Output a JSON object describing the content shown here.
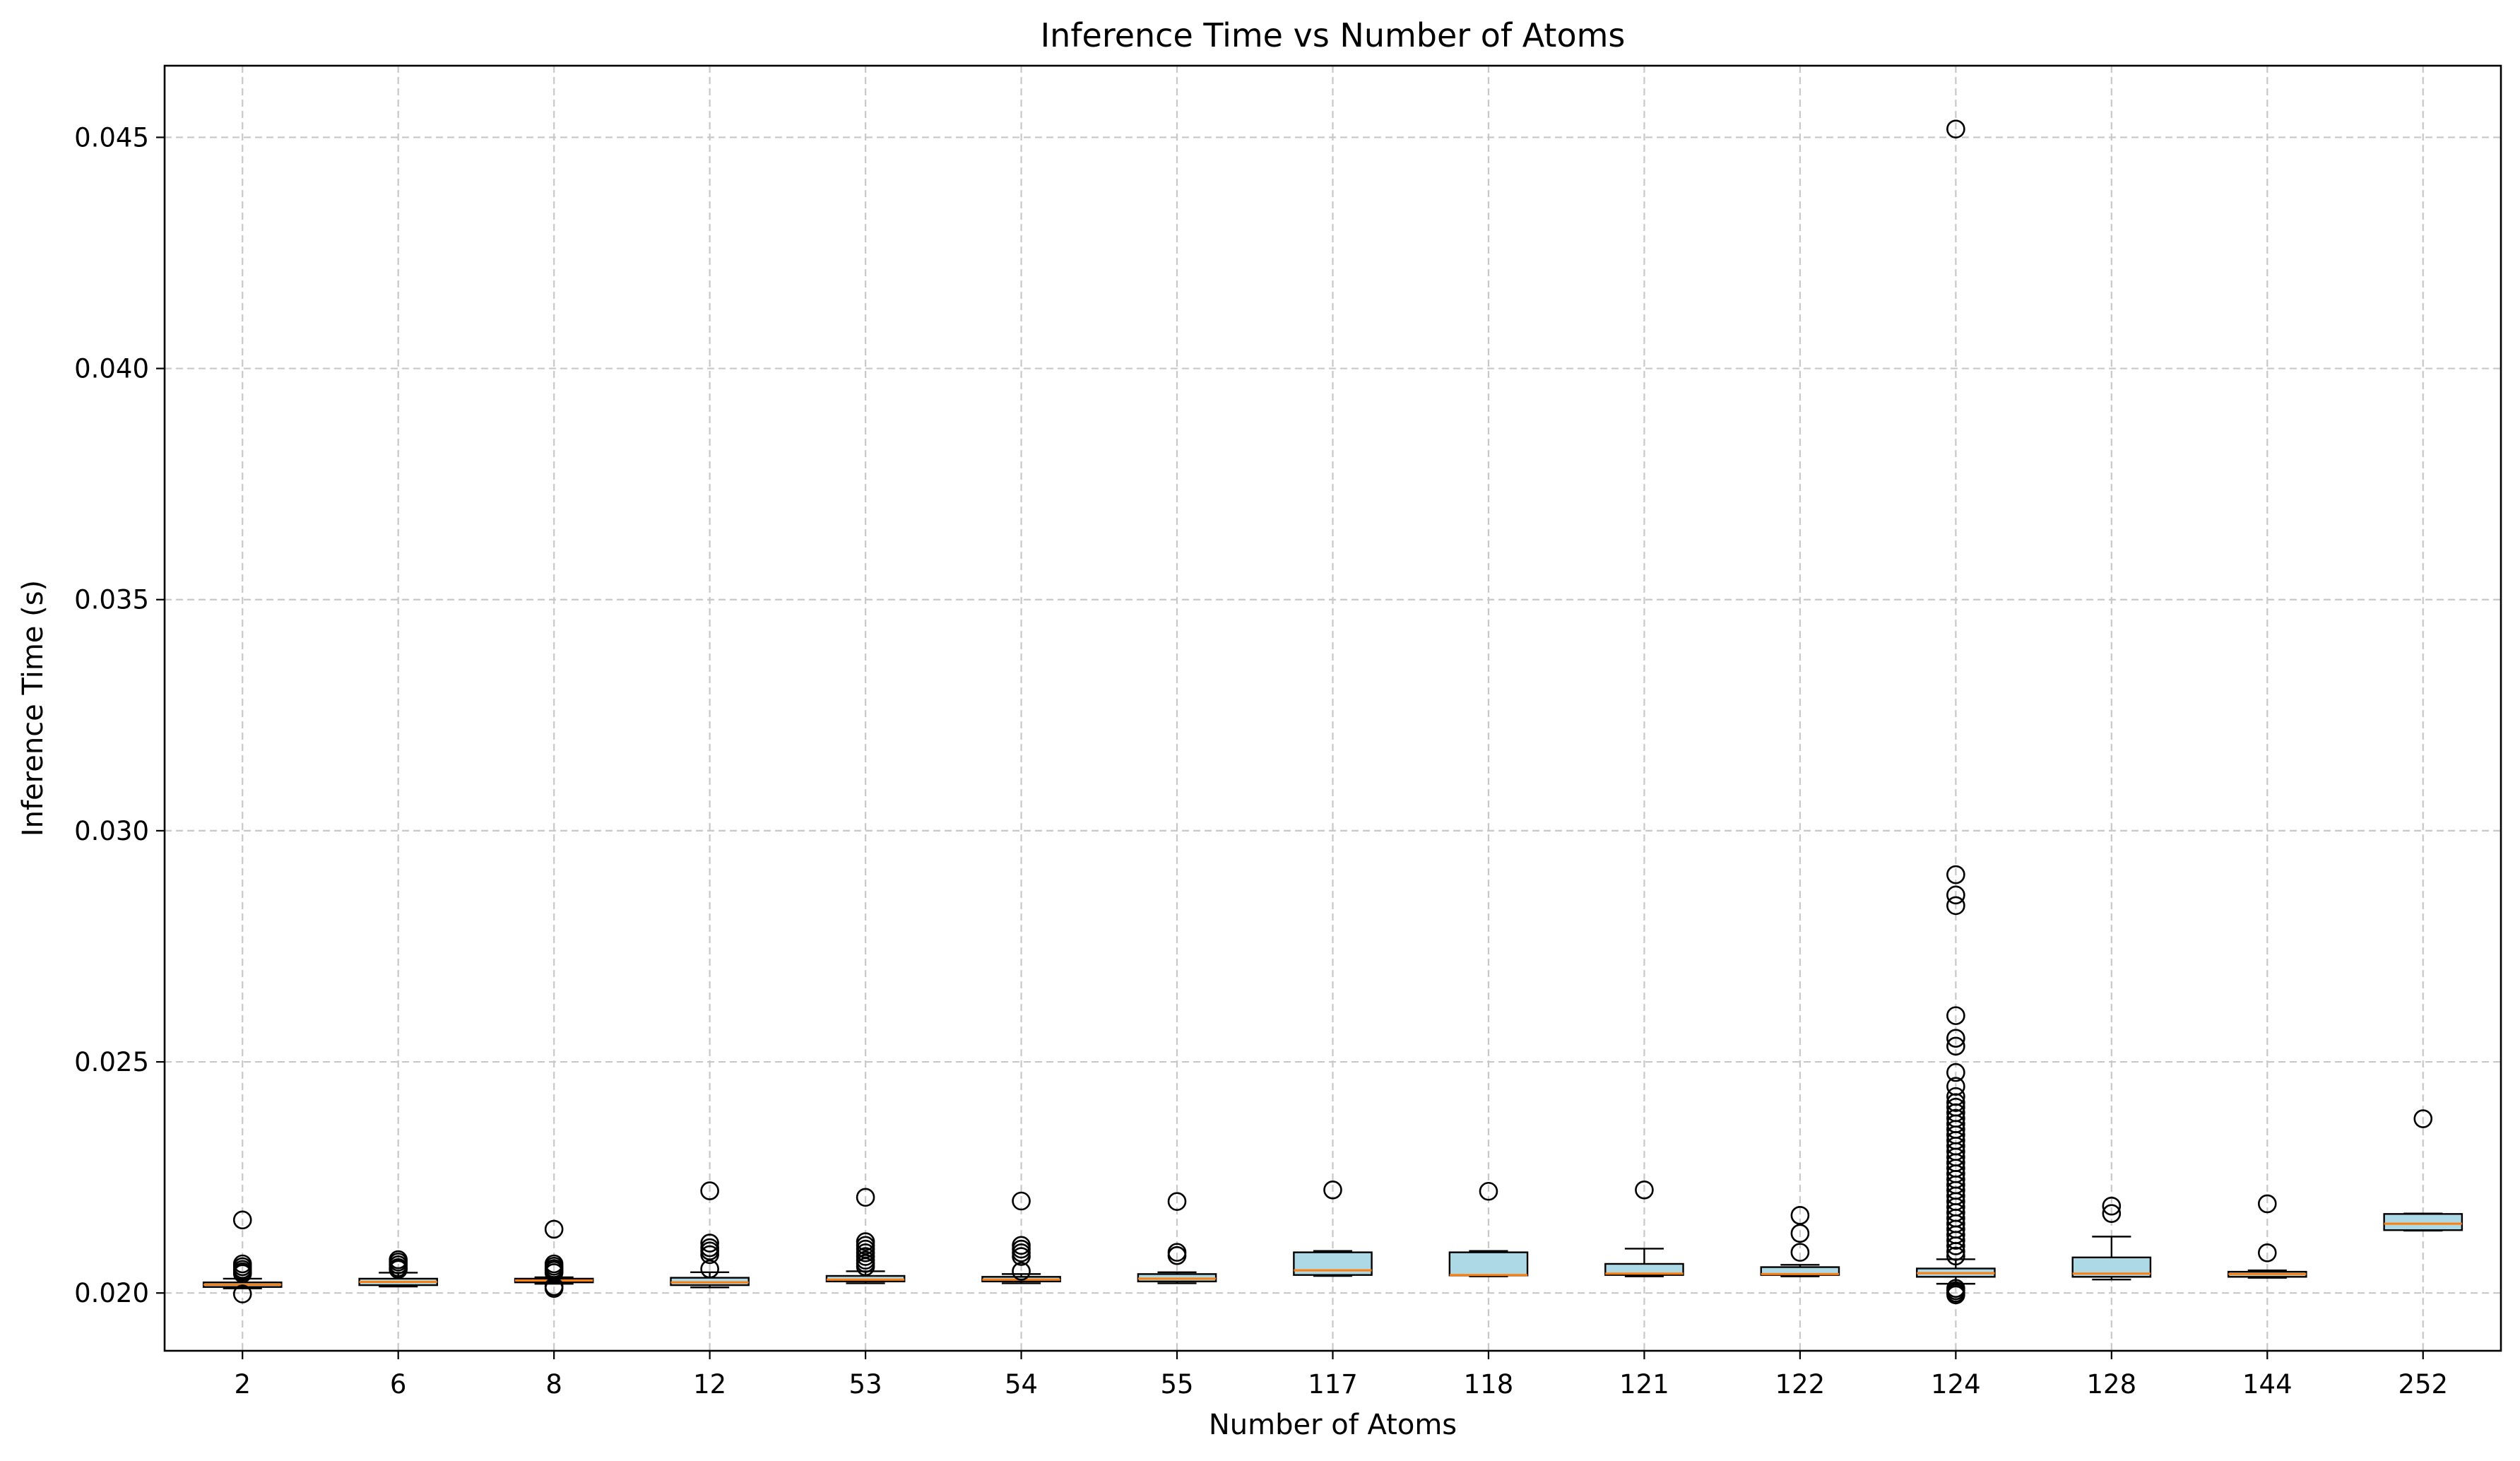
{
  "chart_data": {
    "type": "box",
    "title": "Inference Time vs Number of Atoms",
    "xlabel": "Number of Atoms",
    "ylabel": "Inference Time (s)",
    "ylim": [
      0.01875,
      0.04655
    ],
    "yticks": [
      "0.020",
      "0.025",
      "0.030",
      "0.035",
      "0.040",
      "0.045"
    ],
    "ytick_values": [
      0.02,
      0.025,
      0.03,
      0.035,
      0.04,
      0.045
    ],
    "grid": true,
    "categories": [
      "2",
      "6",
      "8",
      "12",
      "53",
      "54",
      "55",
      "117",
      "118",
      "121",
      "122",
      "124",
      "128",
      "144",
      "252"
    ],
    "boxes": [
      {
        "whisker_low": 0.0201,
        "q1": 0.02013,
        "median": 0.02018,
        "q3": 0.02023,
        "whisker_high": 0.02031,
        "outliers": [
          0.02158,
          0.02063,
          0.02057,
          0.02051,
          0.02046,
          0.02042,
          0.01998
        ]
      },
      {
        "whisker_low": 0.02014,
        "q1": 0.02017,
        "median": 0.02024,
        "q3": 0.02031,
        "whisker_high": 0.02044,
        "outliers": [
          0.02072,
          0.02067,
          0.02061,
          0.02055,
          0.02051
        ]
      },
      {
        "whisker_low": 0.0202,
        "q1": 0.02023,
        "median": 0.02027,
        "q3": 0.02031,
        "whisker_high": 0.02034,
        "outliers": [
          0.02138,
          0.02063,
          0.02058,
          0.02053,
          0.02049,
          0.02044,
          0.02014,
          0.0201
        ]
      },
      {
        "whisker_low": 0.02012,
        "q1": 0.02017,
        "median": 0.02023,
        "q3": 0.02033,
        "whisker_high": 0.02045,
        "outliers": [
          0.02221,
          0.02108,
          0.02098,
          0.02091,
          0.02083,
          0.02052
        ]
      },
      {
        "whisker_low": 0.02021,
        "q1": 0.02025,
        "median": 0.02029,
        "q3": 0.02037,
        "whisker_high": 0.02047,
        "outliers": [
          0.02207,
          0.02111,
          0.02103,
          0.02095,
          0.02087,
          0.02079,
          0.02071,
          0.02064,
          0.02057
        ]
      },
      {
        "whisker_low": 0.02021,
        "q1": 0.02025,
        "median": 0.02029,
        "q3": 0.02035,
        "whisker_high": 0.02041,
        "outliers": [
          0.02199,
          0.02103,
          0.02095,
          0.02087,
          0.02079,
          0.02047
        ]
      },
      {
        "whisker_low": 0.02021,
        "q1": 0.02025,
        "median": 0.02031,
        "q3": 0.02041,
        "whisker_high": 0.02045,
        "outliers": [
          0.02198,
          0.02088,
          0.02081
        ]
      },
      {
        "whisker_low": 0.02037,
        "q1": 0.02039,
        "median": 0.02049,
        "q3": 0.02088,
        "whisker_high": 0.02091,
        "outliers": [
          0.02223
        ]
      },
      {
        "whisker_low": 0.02036,
        "q1": 0.02038,
        "median": 0.02039,
        "q3": 0.02088,
        "whisker_high": 0.02091,
        "outliers": [
          0.0222
        ]
      },
      {
        "whisker_low": 0.02036,
        "q1": 0.02039,
        "median": 0.02042,
        "q3": 0.02063,
        "whisker_high": 0.02096,
        "outliers": [
          0.02223
        ]
      },
      {
        "whisker_low": 0.02036,
        "q1": 0.02039,
        "median": 0.02041,
        "q3": 0.02056,
        "whisker_high": 0.02061,
        "outliers": [
          0.02168,
          0.02129,
          0.02088
        ]
      },
      {
        "whisker_low": 0.0202,
        "q1": 0.02035,
        "median": 0.02043,
        "q3": 0.02053,
        "whisker_high": 0.02073,
        "outliers": [
          0.04518,
          0.02905,
          0.02861,
          0.02838,
          0.026,
          0.02551,
          0.02534,
          0.02477,
          0.02447,
          0.02425,
          0.02412,
          0.02402,
          0.0239,
          0.02378,
          0.02366,
          0.02354,
          0.02342,
          0.0233,
          0.02318,
          0.02306,
          0.02294,
          0.02282,
          0.0227,
          0.02258,
          0.02246,
          0.02234,
          0.02222,
          0.0221,
          0.02198,
          0.02186,
          0.02174,
          0.02162,
          0.0215,
          0.02138,
          0.02126,
          0.02114,
          0.02102,
          0.0209,
          0.0208,
          0.0201,
          0.02005,
          0.02,
          0.01996
        ]
      },
      {
        "whisker_low": 0.02029,
        "q1": 0.02035,
        "median": 0.02042,
        "q3": 0.02077,
        "whisker_high": 0.02122,
        "outliers": [
          0.02188,
          0.02172
        ]
      },
      {
        "whisker_low": 0.02033,
        "q1": 0.02035,
        "median": 0.02041,
        "q3": 0.02046,
        "whisker_high": 0.02049,
        "outliers": [
          0.02193,
          0.02087
        ]
      },
      {
        "whisker_low": 0.02135,
        "q1": 0.02136,
        "median": 0.0215,
        "q3": 0.02171,
        "whisker_high": 0.02172,
        "outliers": [
          0.02377
        ]
      }
    ],
    "colors": {
      "box_fill": "#add8e6",
      "median": "#ff7f0e",
      "grid": "#c8c8c8",
      "axis": "#000000"
    }
  }
}
